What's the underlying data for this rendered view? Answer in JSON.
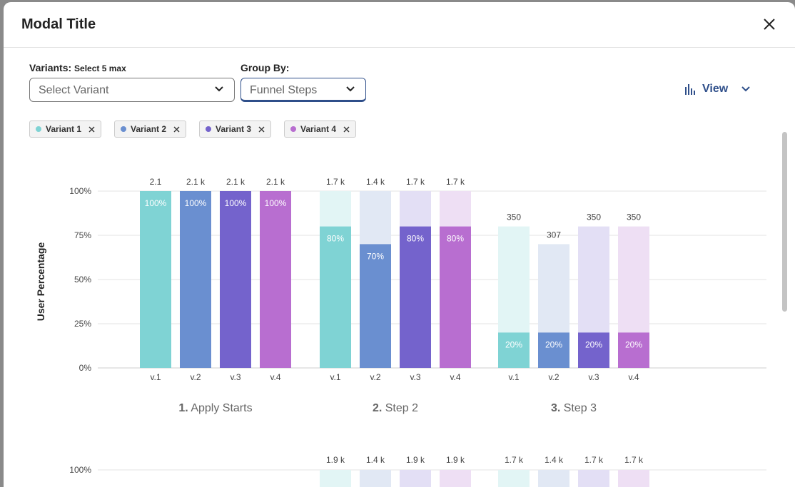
{
  "modal": {
    "title": "Modal Title"
  },
  "filters": {
    "variants_label": "Variants:",
    "variants_hint": "Select 5 max",
    "variants_placeholder": "Select Variant",
    "group_by_label": "Group  By:",
    "group_by_value": "Funnel Steps",
    "view_label": "View"
  },
  "chips": [
    {
      "label": "Variant 1",
      "color": "#7fd3d4"
    },
    {
      "label": "Variant 2",
      "color": "#6a8fd0"
    },
    {
      "label": "Variant 3",
      "color": "#7463cc"
    },
    {
      "label": "Variant 4",
      "color": "#b86ed0"
    }
  ],
  "chart_data": [
    {
      "type": "bar",
      "ylabel": "User Percentage",
      "yticks": [
        "0%",
        "25%",
        "50%",
        "75%",
        "100%"
      ],
      "ylim": [
        0,
        100
      ],
      "grid": true,
      "categories": [
        "v.1",
        "v.2",
        "v.3",
        "v.4"
      ],
      "colors": [
        "#7fd3d4",
        "#6a8fd0",
        "#7463cc",
        "#b86ed0"
      ],
      "light_colors": [
        "#e2f5f5",
        "#e1e8f4",
        "#e3dff5",
        "#eedff4"
      ],
      "groups": [
        {
          "num": "1.",
          "name": "Apply Starts",
          "values": [
            100,
            100,
            100,
            100
          ],
          "labels": [
            "100%",
            "100%",
            "100%",
            "100%"
          ],
          "background": [
            100,
            100,
            100,
            100
          ],
          "counts": [
            "2.1",
            "2.1 k",
            "2.1 k",
            "2.1 k"
          ]
        },
        {
          "num": "2.",
          "name": "Step 2",
          "values": [
            80,
            70,
            80,
            80
          ],
          "labels": [
            "80%",
            "70%",
            "80%",
            "80%"
          ],
          "background": [
            100,
            100,
            100,
            100
          ],
          "counts": [
            "1.7 k",
            "1.4 k",
            "1.7 k",
            "1.7 k"
          ]
        },
        {
          "num": "3.",
          "name": "Step 3",
          "values": [
            20,
            20,
            20,
            20
          ],
          "labels": [
            "20%",
            "20%",
            "20%",
            "20%"
          ],
          "background": [
            80,
            70,
            80,
            80
          ],
          "counts": [
            "350",
            "307",
            "350",
            "350"
          ]
        }
      ]
    },
    {
      "type": "bar",
      "yticks": [
        "100%"
      ],
      "groups": [
        {
          "counts": []
        },
        {
          "counts": [
            "1.9 k",
            "1.4 k",
            "1.9 k",
            "1.9 k"
          ]
        },
        {
          "counts": [
            "1.7 k",
            "1.4 k",
            "1.7 k",
            "1.7 k"
          ]
        }
      ]
    }
  ]
}
